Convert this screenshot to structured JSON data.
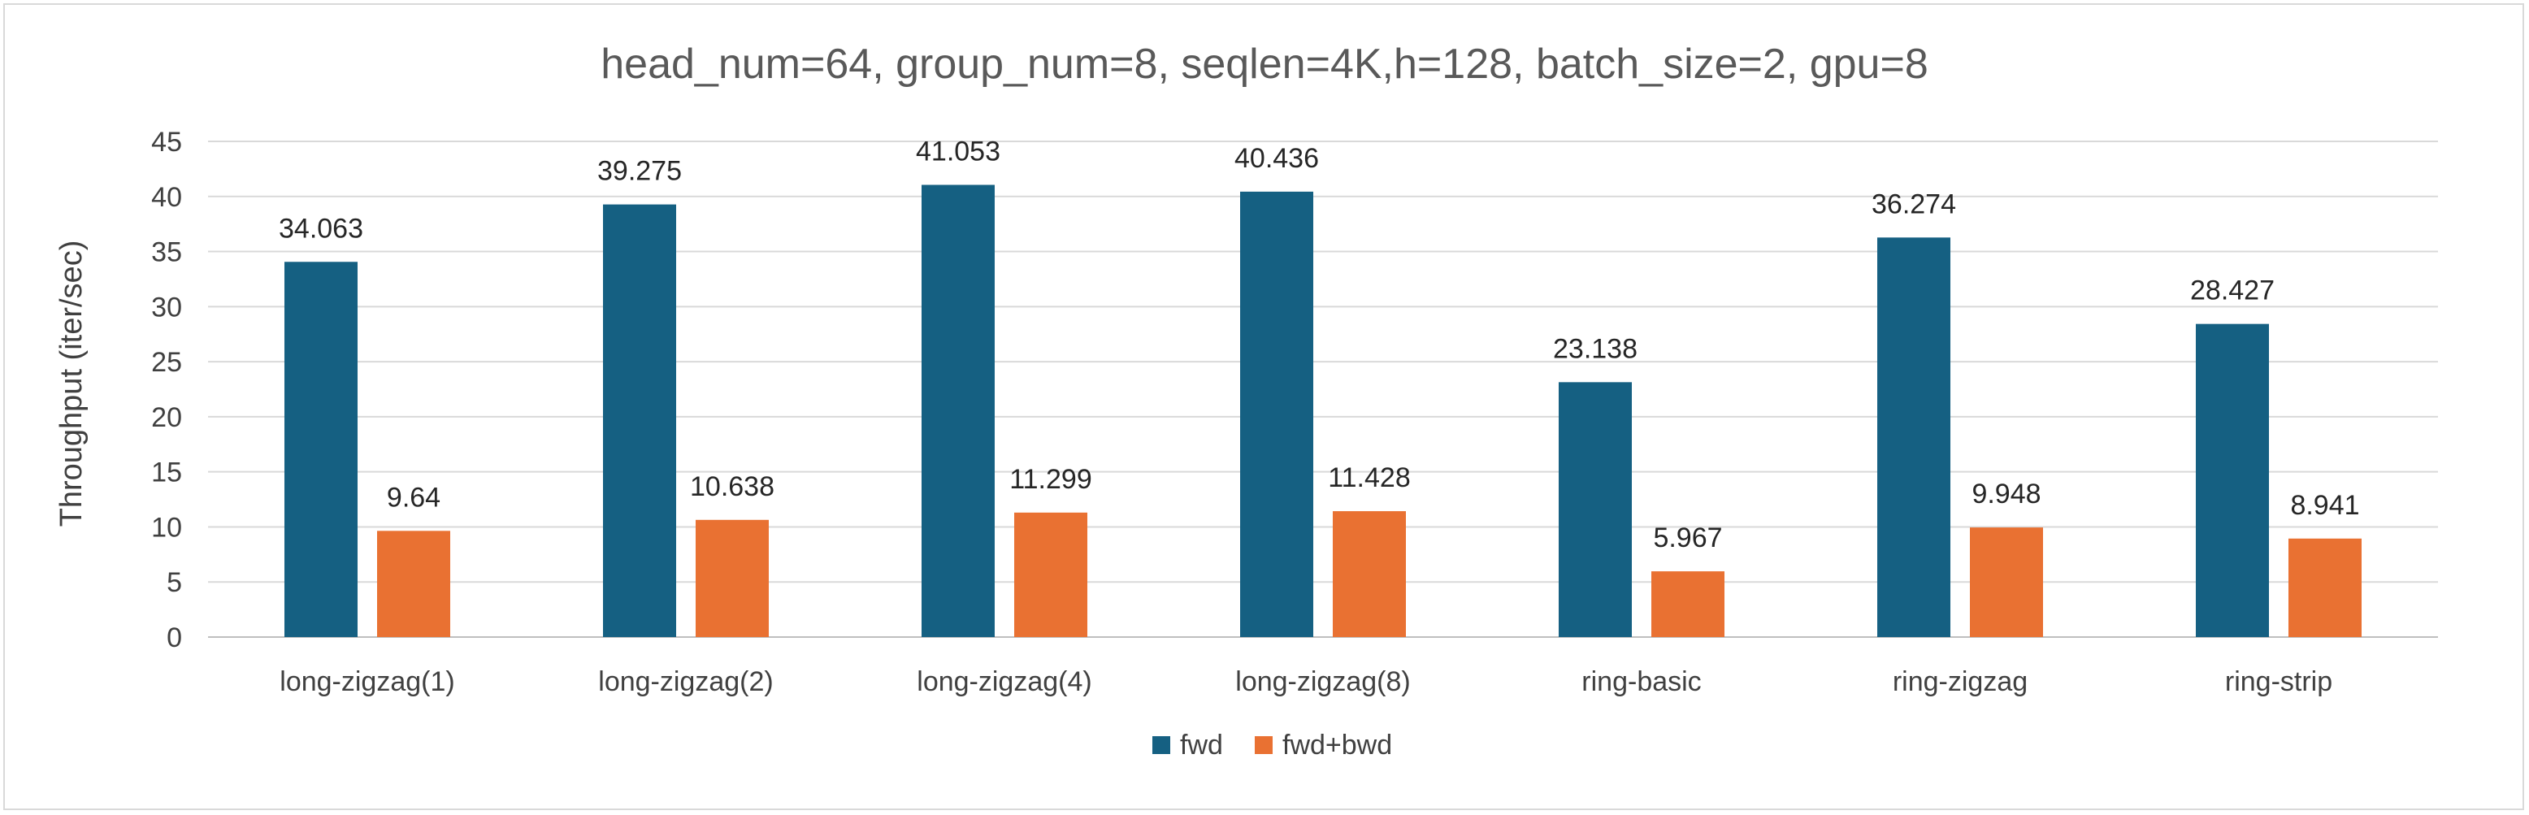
{
  "chart_data": {
    "type": "bar",
    "title": "head_num=64, group_num=8, seqlen=4K,h=128, batch_size=2, gpu=8",
    "xlabel": "",
    "ylabel": "Throughput (iter/sec)",
    "ylim": [
      0,
      45
    ],
    "yticks": [
      0,
      5,
      10,
      15,
      20,
      25,
      30,
      35,
      40,
      45
    ],
    "grid": true,
    "legend_position": "bottom",
    "categories": [
      "long-zigzag(1)",
      "long-zigzag(2)",
      "long-zigzag(4)",
      "long-zigzag(8)",
      "ring-basic",
      "ring-zigzag",
      "ring-strip"
    ],
    "series": [
      {
        "name": "fwd",
        "color": "#156082",
        "values": [
          34.063,
          39.275,
          41.053,
          40.436,
          23.138,
          36.274,
          28.427
        ]
      },
      {
        "name": "fwd+bwd",
        "color": "#e97132",
        "values": [
          9.64,
          10.638,
          11.299,
          11.428,
          5.967,
          9.948,
          8.941
        ]
      }
    ]
  }
}
